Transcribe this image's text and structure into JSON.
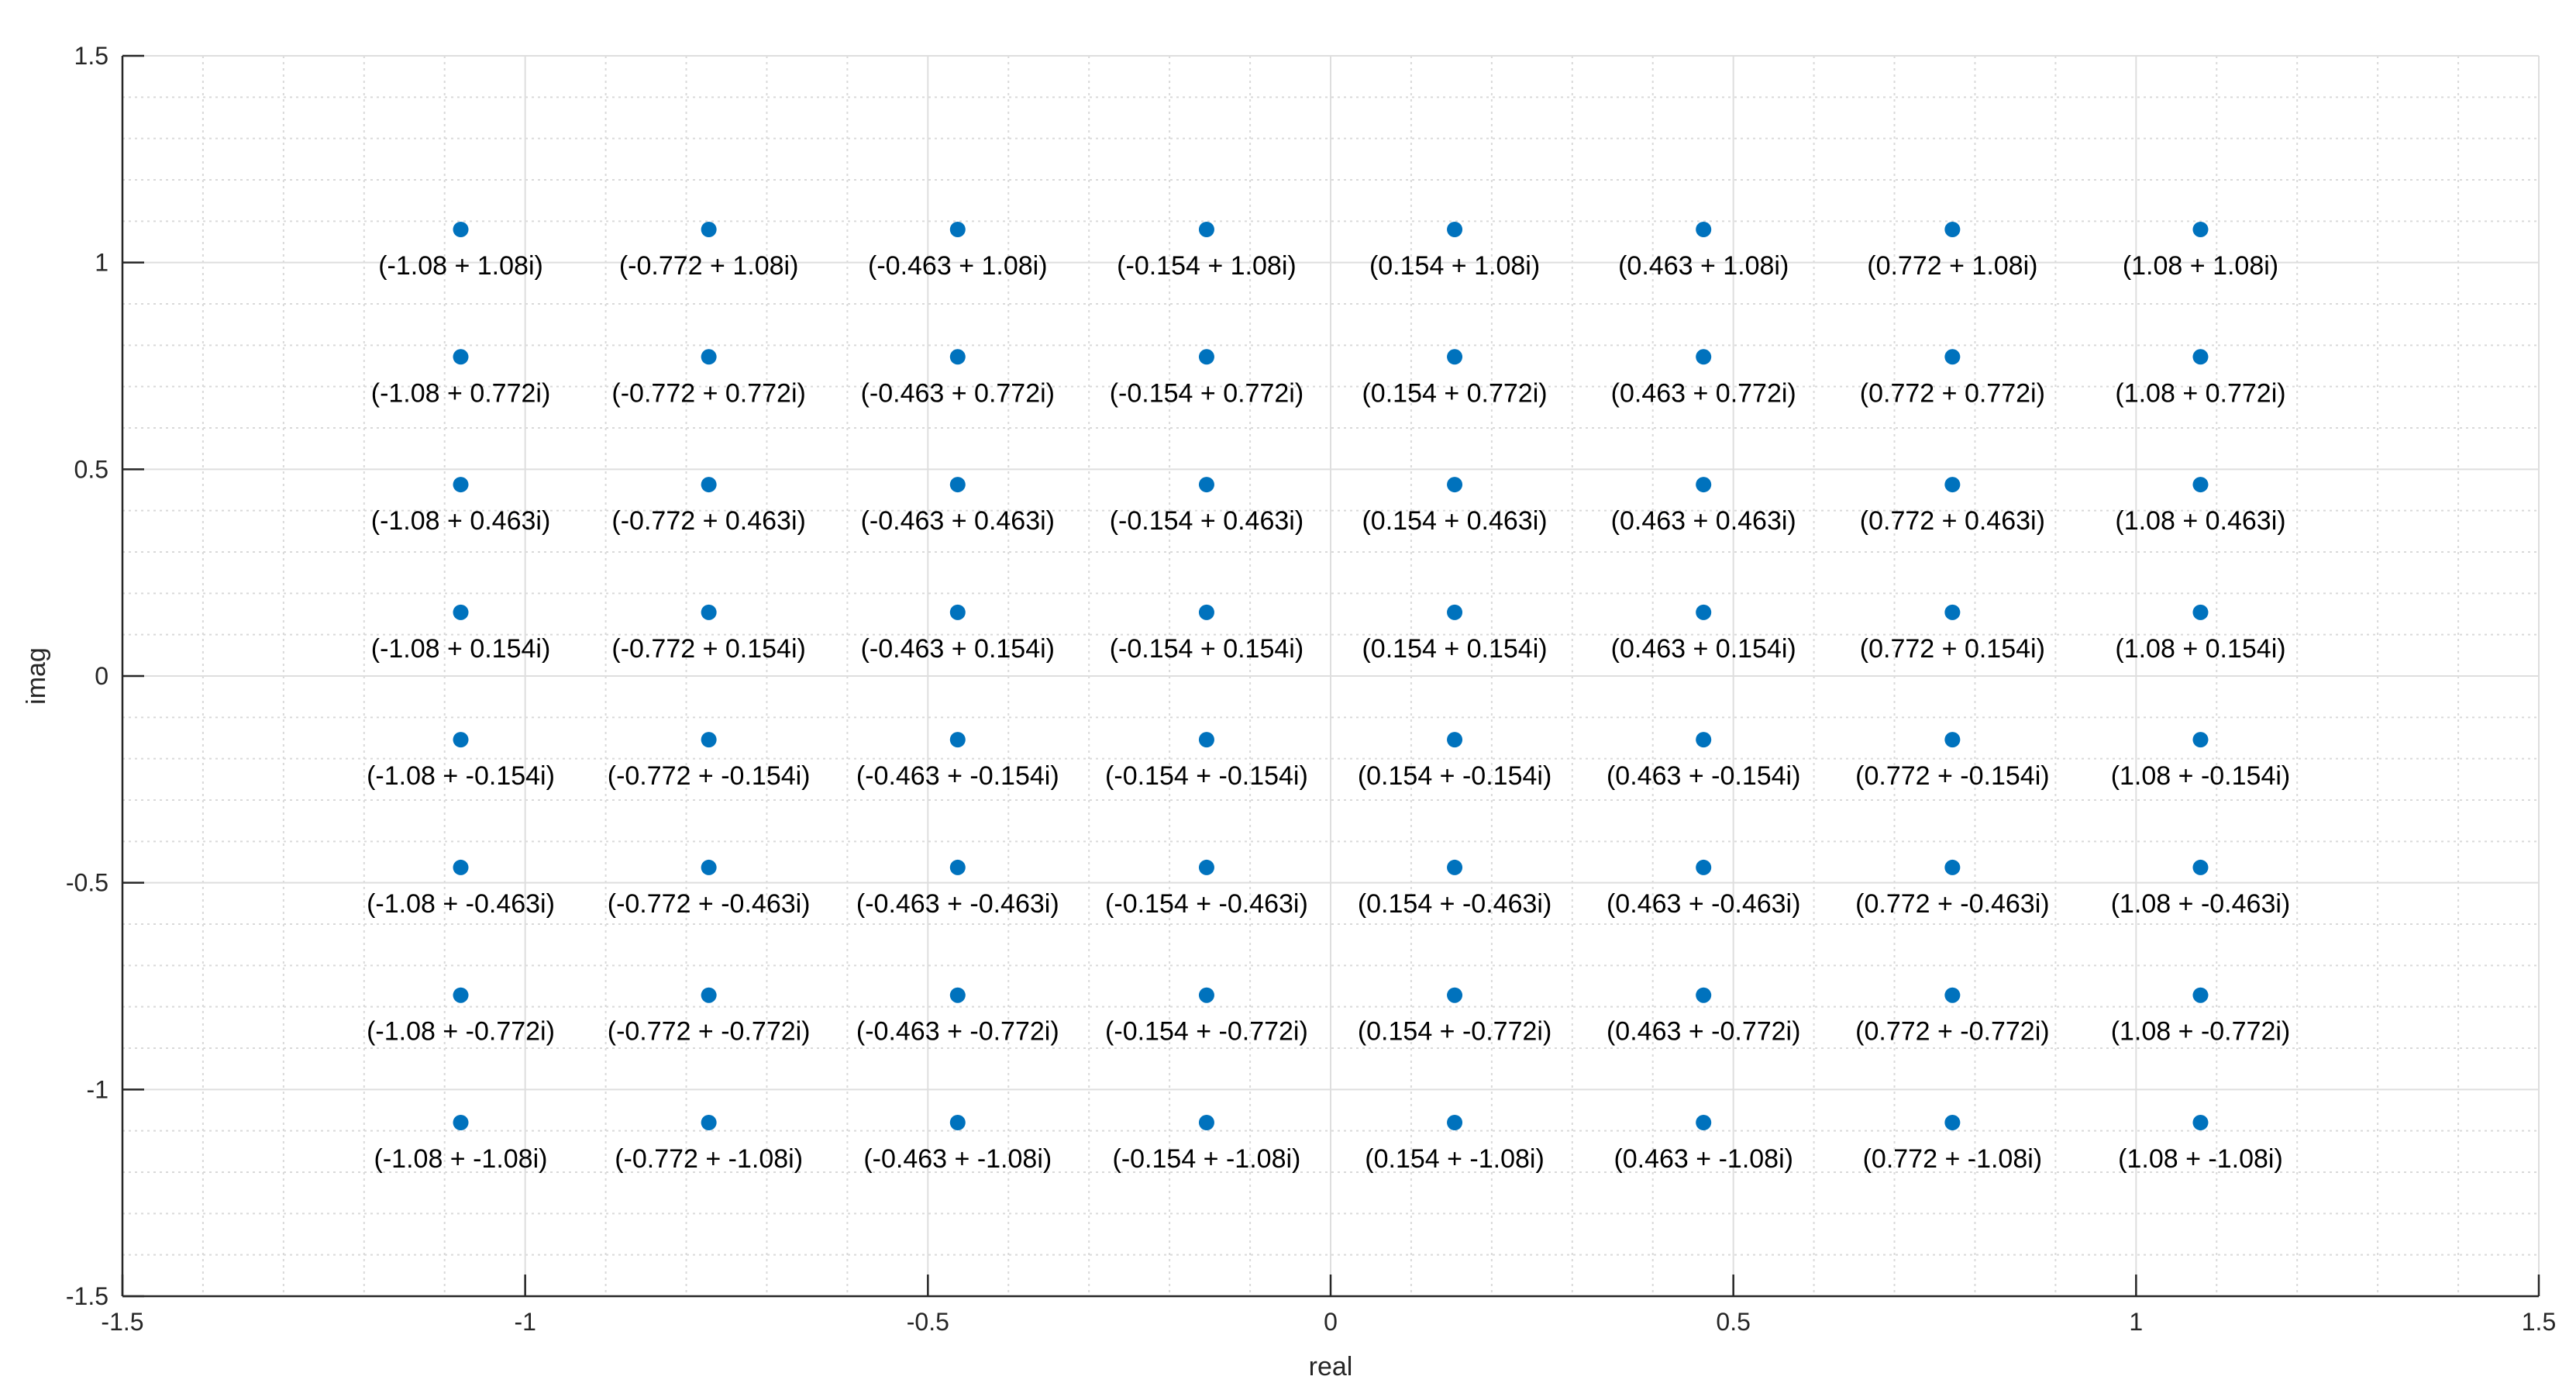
{
  "chart_data": {
    "type": "scatter",
    "xlabel": "real",
    "ylabel": "imag",
    "xlim": [
      -1.5,
      1.5
    ],
    "ylim": [
      -1.5,
      1.5
    ],
    "xticks": [
      -1.5,
      -1,
      -0.5,
      0,
      0.5,
      1,
      1.5
    ],
    "yticks": [
      -1.5,
      -1,
      -0.5,
      0,
      0.5,
      1,
      1.5
    ],
    "xtick_labels": [
      "-1.5",
      "-1",
      "-0.5",
      "0",
      "0.5",
      "1",
      "1.5"
    ],
    "ytick_labels": [
      "-1.5",
      "-1",
      "-0.5",
      "0",
      "0.5",
      "1",
      "1.5"
    ],
    "x_minor_step": 0.1,
    "y_minor_step": 0.1,
    "grid": true,
    "minor_grid": true,
    "marker_color": "#0072BD",
    "grid_values": [
      -1.08,
      -0.772,
      -0.463,
      -0.154,
      0.154,
      0.463,
      0.772,
      1.08
    ],
    "points": [
      {
        "x": -1.08,
        "y": 1.08,
        "label": "(-1.08 + 1.08i)"
      },
      {
        "x": -0.772,
        "y": 1.08,
        "label": "(-0.772 + 1.08i)"
      },
      {
        "x": -0.463,
        "y": 1.08,
        "label": "(-0.463 + 1.08i)"
      },
      {
        "x": -0.154,
        "y": 1.08,
        "label": "(-0.154 + 1.08i)"
      },
      {
        "x": 0.154,
        "y": 1.08,
        "label": "(0.154 + 1.08i)"
      },
      {
        "x": 0.463,
        "y": 1.08,
        "label": "(0.463 + 1.08i)"
      },
      {
        "x": 0.772,
        "y": 1.08,
        "label": "(0.772 + 1.08i)"
      },
      {
        "x": 1.08,
        "y": 1.08,
        "label": "(1.08 + 1.08i)"
      },
      {
        "x": -1.08,
        "y": 0.772,
        "label": "(-1.08 + 0.772i)"
      },
      {
        "x": -0.772,
        "y": 0.772,
        "label": "(-0.772 + 0.772i)"
      },
      {
        "x": -0.463,
        "y": 0.772,
        "label": "(-0.463 + 0.772i)"
      },
      {
        "x": -0.154,
        "y": 0.772,
        "label": "(-0.154 + 0.772i)"
      },
      {
        "x": 0.154,
        "y": 0.772,
        "label": "(0.154 + 0.772i)"
      },
      {
        "x": 0.463,
        "y": 0.772,
        "label": "(0.463 + 0.772i)"
      },
      {
        "x": 0.772,
        "y": 0.772,
        "label": "(0.772 + 0.772i)"
      },
      {
        "x": 1.08,
        "y": 0.772,
        "label": "(1.08 + 0.772i)"
      },
      {
        "x": -1.08,
        "y": 0.463,
        "label": "(-1.08 + 0.463i)"
      },
      {
        "x": -0.772,
        "y": 0.463,
        "label": "(-0.772 + 0.463i)"
      },
      {
        "x": -0.463,
        "y": 0.463,
        "label": "(-0.463 + 0.463i)"
      },
      {
        "x": -0.154,
        "y": 0.463,
        "label": "(-0.154 + 0.463i)"
      },
      {
        "x": 0.154,
        "y": 0.463,
        "label": "(0.154 + 0.463i)"
      },
      {
        "x": 0.463,
        "y": 0.463,
        "label": "(0.463 + 0.463i)"
      },
      {
        "x": 0.772,
        "y": 0.463,
        "label": "(0.772 + 0.463i)"
      },
      {
        "x": 1.08,
        "y": 0.463,
        "label": "(1.08 + 0.463i)"
      },
      {
        "x": -1.08,
        "y": 0.154,
        "label": "(-1.08 + 0.154i)"
      },
      {
        "x": -0.772,
        "y": 0.154,
        "label": "(-0.772 + 0.154i)"
      },
      {
        "x": -0.463,
        "y": 0.154,
        "label": "(-0.463 + 0.154i)"
      },
      {
        "x": -0.154,
        "y": 0.154,
        "label": "(-0.154 + 0.154i)"
      },
      {
        "x": 0.154,
        "y": 0.154,
        "label": "(0.154 + 0.154i)"
      },
      {
        "x": 0.463,
        "y": 0.154,
        "label": "(0.463 + 0.154i)"
      },
      {
        "x": 0.772,
        "y": 0.154,
        "label": "(0.772 + 0.154i)"
      },
      {
        "x": 1.08,
        "y": 0.154,
        "label": "(1.08 + 0.154i)"
      },
      {
        "x": -1.08,
        "y": -0.154,
        "label": "(-1.08 + -0.154i)"
      },
      {
        "x": -0.772,
        "y": -0.154,
        "label": "(-0.772 + -0.154i)"
      },
      {
        "x": -0.463,
        "y": -0.154,
        "label": "(-0.463 + -0.154i)"
      },
      {
        "x": -0.154,
        "y": -0.154,
        "label": "(-0.154 + -0.154i)"
      },
      {
        "x": 0.154,
        "y": -0.154,
        "label": "(0.154 + -0.154i)"
      },
      {
        "x": 0.463,
        "y": -0.154,
        "label": "(0.463 + -0.154i)"
      },
      {
        "x": 0.772,
        "y": -0.154,
        "label": "(0.772 + -0.154i)"
      },
      {
        "x": 1.08,
        "y": -0.154,
        "label": "(1.08 + -0.154i)"
      },
      {
        "x": -1.08,
        "y": -0.463,
        "label": "(-1.08 + -0.463i)"
      },
      {
        "x": -0.772,
        "y": -0.463,
        "label": "(-0.772 + -0.463i)"
      },
      {
        "x": -0.463,
        "y": -0.463,
        "label": "(-0.463 + -0.463i)"
      },
      {
        "x": -0.154,
        "y": -0.463,
        "label": "(-0.154 + -0.463i)"
      },
      {
        "x": 0.154,
        "y": -0.463,
        "label": "(0.154 + -0.463i)"
      },
      {
        "x": 0.463,
        "y": -0.463,
        "label": "(0.463 + -0.463i)"
      },
      {
        "x": 0.772,
        "y": -0.463,
        "label": "(0.772 + -0.463i)"
      },
      {
        "x": 1.08,
        "y": -0.463,
        "label": "(1.08 + -0.463i)"
      },
      {
        "x": -1.08,
        "y": -0.772,
        "label": "(-1.08 + -0.772i)"
      },
      {
        "x": -0.772,
        "y": -0.772,
        "label": "(-0.772 + -0.772i)"
      },
      {
        "x": -0.463,
        "y": -0.772,
        "label": "(-0.463 + -0.772i)"
      },
      {
        "x": -0.154,
        "y": -0.772,
        "label": "(-0.154 + -0.772i)"
      },
      {
        "x": 0.154,
        "y": -0.772,
        "label": "(0.154 + -0.772i)"
      },
      {
        "x": 0.463,
        "y": -0.772,
        "label": "(0.463 + -0.772i)"
      },
      {
        "x": 0.772,
        "y": -0.772,
        "label": "(0.772 + -0.772i)"
      },
      {
        "x": 1.08,
        "y": -0.772,
        "label": "(1.08 + -0.772i)"
      },
      {
        "x": -1.08,
        "y": -1.08,
        "label": "(-1.08 + -1.08i)"
      },
      {
        "x": -0.772,
        "y": -1.08,
        "label": "(-0.772 + -1.08i)"
      },
      {
        "x": -0.463,
        "y": -1.08,
        "label": "(-0.463 + -1.08i)"
      },
      {
        "x": -0.154,
        "y": -1.08,
        "label": "(-0.154 + -1.08i)"
      },
      {
        "x": 0.154,
        "y": -1.08,
        "label": "(0.154 + -1.08i)"
      },
      {
        "x": 0.463,
        "y": -1.08,
        "label": "(0.463 + -1.08i)"
      },
      {
        "x": 0.772,
        "y": -1.08,
        "label": "(0.772 + -1.08i)"
      },
      {
        "x": 1.08,
        "y": -1.08,
        "label": "(1.08 + -1.08i)"
      }
    ]
  }
}
